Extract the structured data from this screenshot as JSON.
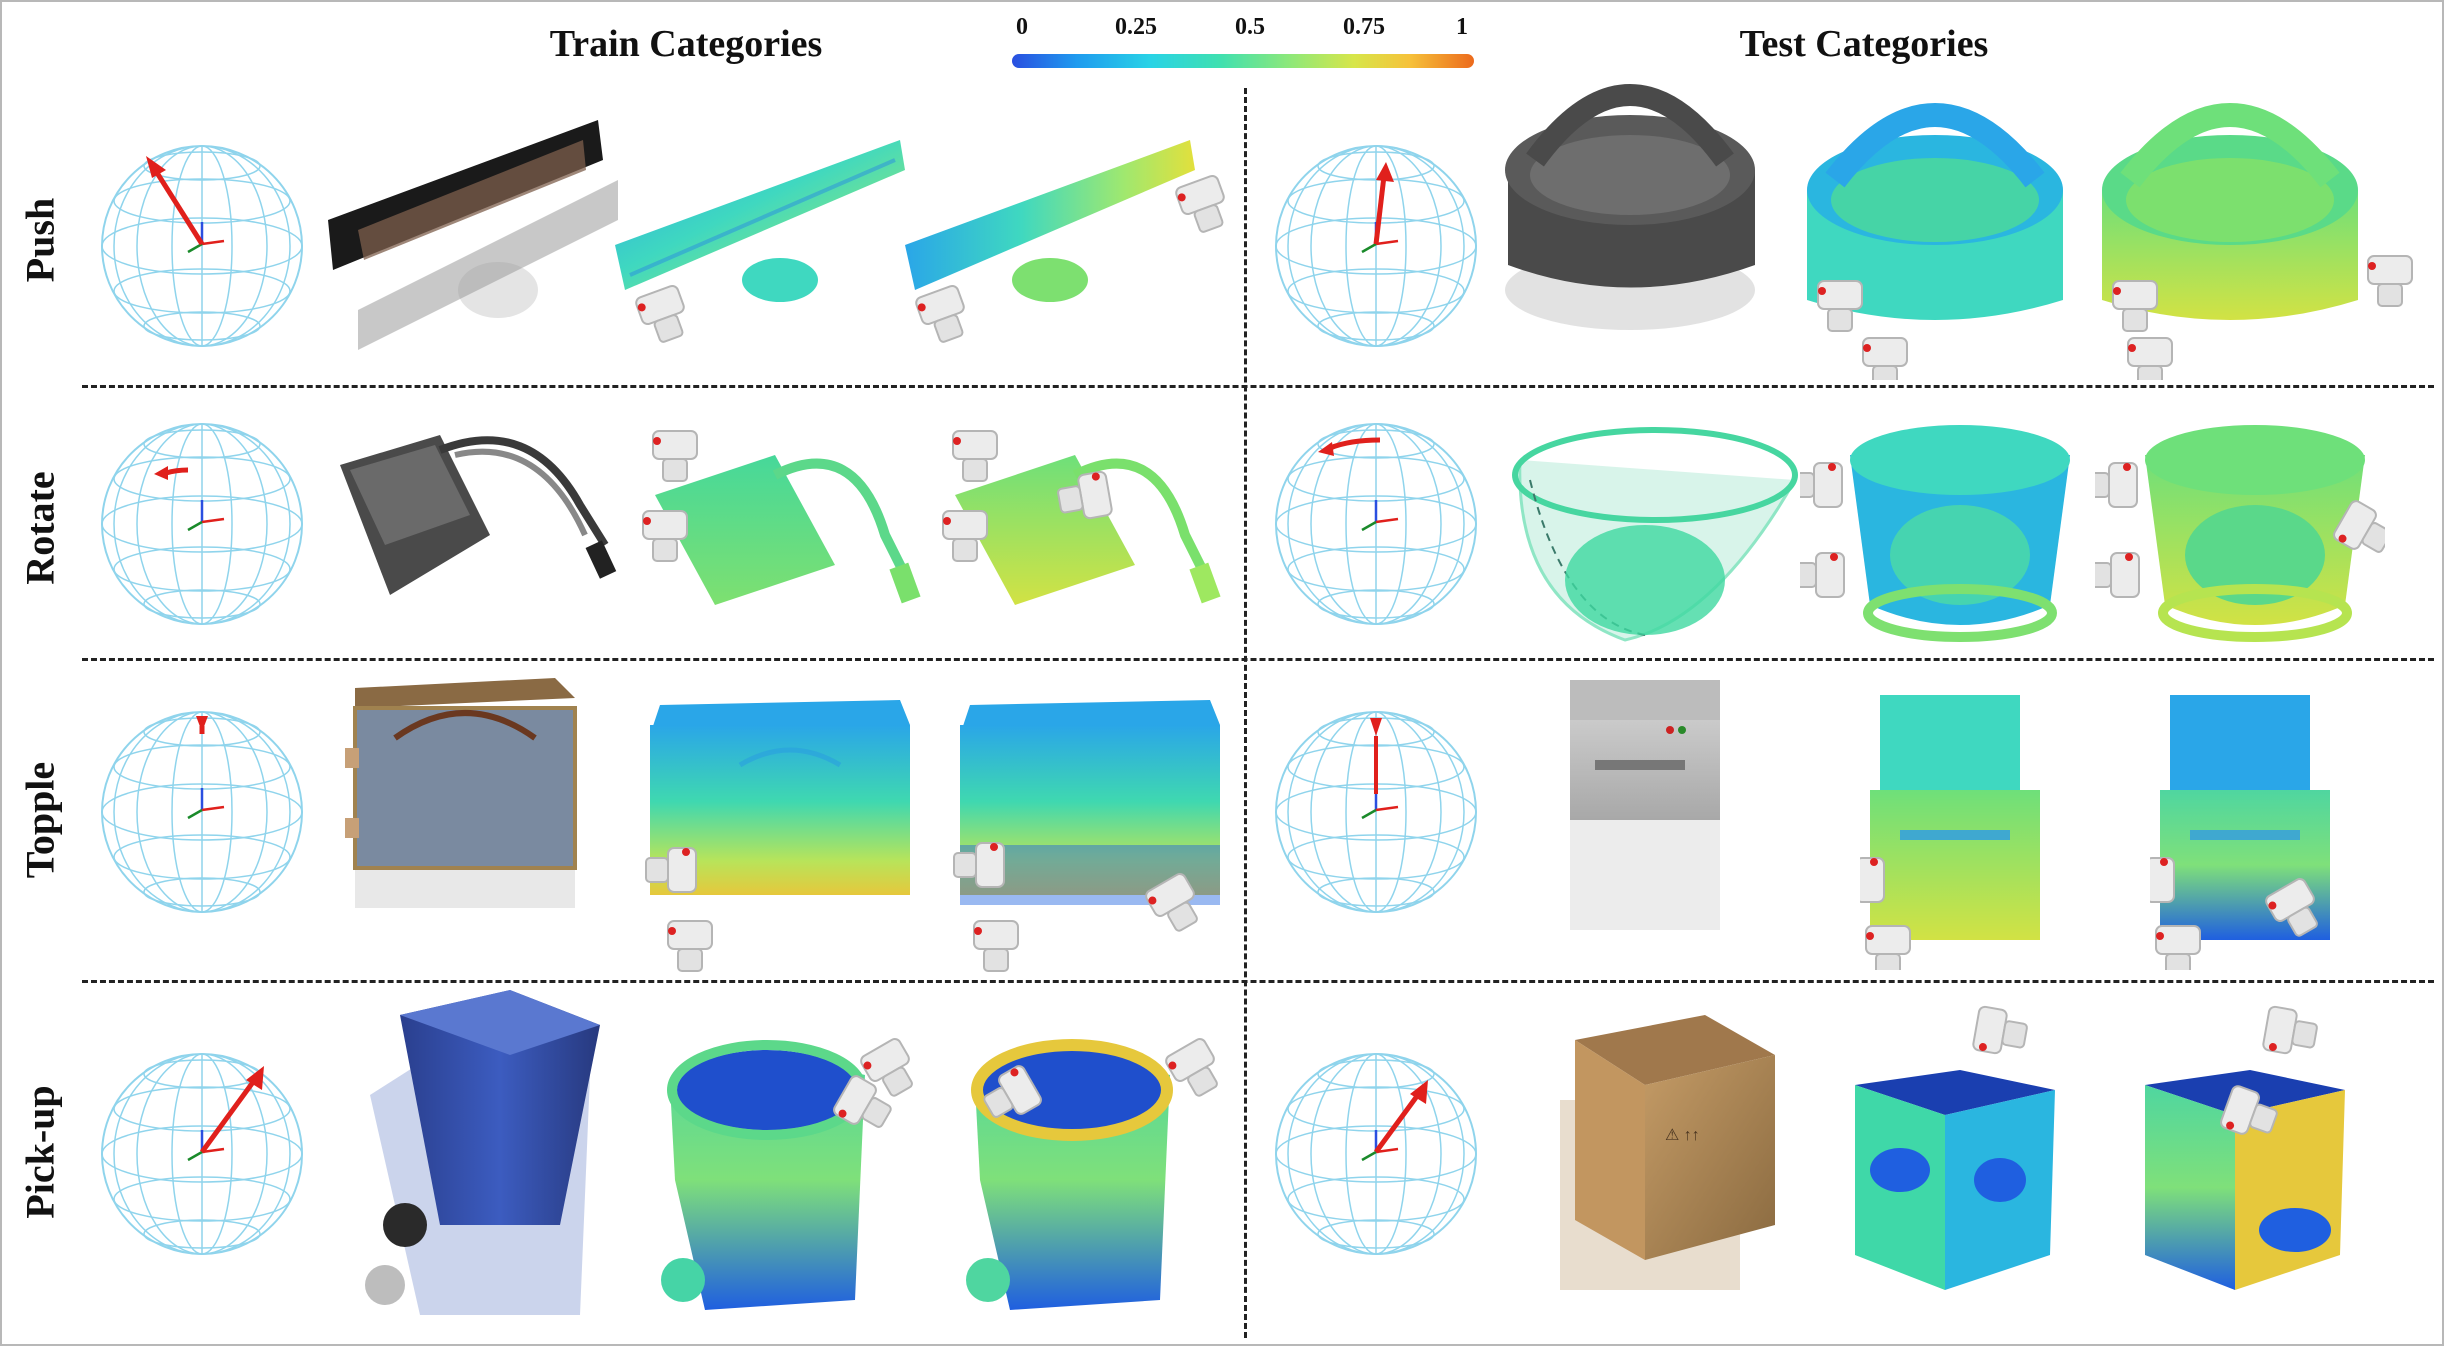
{
  "headers": {
    "train": "Train Categories",
    "test": "Test Categories"
  },
  "colorbar": {
    "ticks": [
      "0",
      "0.25",
      "0.5",
      "0.75",
      "1"
    ],
    "colors": [
      "#2a4fe0",
      "#29d3e6",
      "#8de87a",
      "#f6c23a",
      "#ec6a1c"
    ]
  },
  "rows": [
    {
      "label": "Push",
      "train_object": "monitor-icon",
      "test_object": "basket-icon"
    },
    {
      "label": "Rotate",
      "train_object": "hard-drive-icon",
      "test_object": "waste-basket-icon"
    },
    {
      "label": "Topple",
      "train_object": "suitcase-icon",
      "test_object": "printer-icon"
    },
    {
      "label": "Pick-up",
      "train_object": "trash-can-icon",
      "test_object": "cardboard-box-icon"
    }
  ],
  "colors": {
    "sphere": "#8fd4ec",
    "arrow": "#e0201c",
    "gripper": "#e8e8e8"
  }
}
